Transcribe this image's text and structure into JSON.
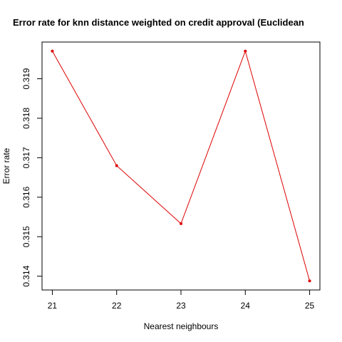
{
  "chart_data": {
    "type": "line",
    "title": "Error rate for knn distance weighted on credit approval (Euclidean",
    "xlabel": "Nearest neighbours",
    "ylabel": "Error rate",
    "x": [
      21,
      22,
      23,
      24,
      25
    ],
    "series": [
      {
        "values": [
          0.3197,
          0.3168,
          0.31533,
          0.3197,
          0.31388
        ],
        "color": "#dd0000"
      }
    ],
    "xticks": [
      "21",
      "22",
      "23",
      "24",
      "25"
    ],
    "yticks": [
      "0.314",
      "0.315",
      "0.316",
      "0.317",
      "0.318",
      "0.319"
    ],
    "xlim": [
      20.84,
      25.16
    ],
    "ylim": [
      0.31365,
      0.31993
    ],
    "grid": false,
    "legend": "none"
  }
}
